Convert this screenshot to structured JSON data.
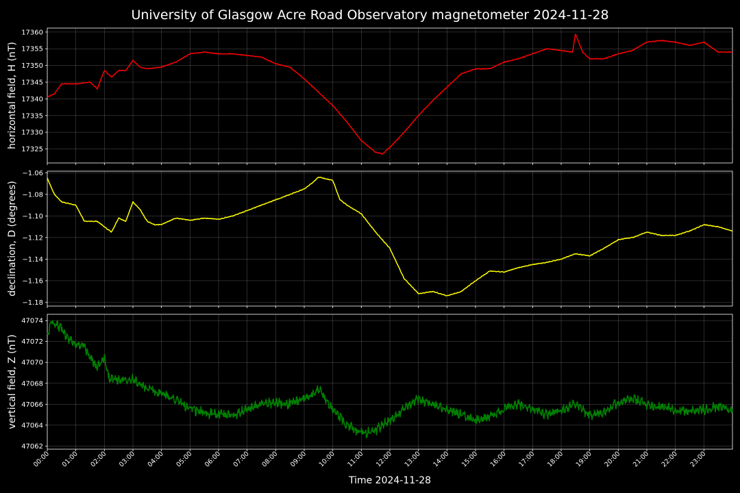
{
  "figure": {
    "title": "University of Glasgow Acre Road Observatory magnetometer 2024-11-28",
    "xlabel": "Time 2024-11-28"
  },
  "chart_data": [
    {
      "type": "line",
      "ylabel": "horizontal field, H (nT)",
      "color": "#ff0000",
      "xlim": [
        0,
        24
      ],
      "ylim": [
        17320.8,
        17361.2
      ],
      "yticks": [
        17325,
        17330,
        17335,
        17340,
        17345,
        17350,
        17355,
        17360
      ],
      "x_hours": [
        0,
        0.25,
        0.5,
        1,
        1.5,
        1.75,
        2,
        2.25,
        2.5,
        2.75,
        3,
        3.25,
        3.5,
        4,
        4.5,
        5,
        5.5,
        6,
        6.5,
        7,
        7.5,
        8,
        8.5,
        9,
        9.5,
        10,
        10.5,
        11,
        11.5,
        11.75,
        12,
        12.5,
        13,
        13.5,
        14,
        14.5,
        15,
        15.5,
        16,
        16.5,
        17,
        17.5,
        18,
        18.4,
        18.5,
        18.75,
        19,
        19.5,
        20,
        20.5,
        21,
        21.5,
        22,
        22.5,
        23,
        23.5,
        24
      ],
      "y_nT": [
        17340.5,
        17341.5,
        17344.5,
        17344.5,
        17345,
        17343,
        17348.5,
        17346.5,
        17348.5,
        17348.5,
        17351.5,
        17349.5,
        17349,
        17349.5,
        17351,
        17353.5,
        17354,
        17353.5,
        17353.5,
        17353,
        17352.5,
        17350.5,
        17349.5,
        17346,
        17342,
        17338,
        17333,
        17327.5,
        17324,
        17323.5,
        17325.5,
        17330,
        17335,
        17339.5,
        17343.5,
        17347.5,
        17349,
        17349,
        17351,
        17352,
        17353.5,
        17355,
        17354.5,
        17354,
        17359.5,
        17354,
        17352,
        17352,
        17353.5,
        17354.5,
        17357,
        17357.5,
        17357,
        17356,
        17357,
        17354,
        17354
      ]
    },
    {
      "type": "line",
      "ylabel": "declination, D (degrees)",
      "color": "#ffff00",
      "xlim": [
        0,
        24
      ],
      "ylim": [
        -1.1835,
        -1.0585
      ],
      "yticks": [
        -1.18,
        -1.16,
        -1.14,
        -1.12,
        -1.1,
        -1.08,
        -1.06
      ],
      "x_hours": [
        0,
        0.25,
        0.5,
        1,
        1.3,
        1.75,
        2.25,
        2.5,
        2.75,
        3,
        3.25,
        3.5,
        3.75,
        4,
        4.5,
        5,
        5.5,
        6,
        6.5,
        7,
        7.5,
        8,
        8.5,
        9,
        9.25,
        9.5,
        10,
        10.25,
        10.5,
        11,
        11.5,
        12,
        12.5,
        13,
        13.5,
        14,
        14.5,
        15,
        15.5,
        16,
        16.5,
        17,
        17.5,
        18,
        18.5,
        19,
        19.5,
        20,
        20.5,
        21,
        21.5,
        22,
        22.5,
        23,
        23.5,
        24
      ],
      "y_degrees": [
        -1.065,
        -1.08,
        -1.087,
        -1.09,
        -1.105,
        -1.105,
        -1.115,
        -1.102,
        -1.105,
        -1.087,
        -1.094,
        -1.105,
        -1.108,
        -1.108,
        -1.102,
        -1.104,
        -1.102,
        -1.103,
        -1.1,
        -1.095,
        -1.09,
        -1.085,
        -1.08,
        -1.075,
        -1.07,
        -1.064,
        -1.067,
        -1.085,
        -1.09,
        -1.098,
        -1.115,
        -1.13,
        -1.158,
        -1.172,
        -1.17,
        -1.174,
        -1.17,
        -1.16,
        -1.151,
        -1.152,
        -1.148,
        -1.145,
        -1.143,
        -1.14,
        -1.135,
        -1.137,
        -1.13,
        -1.122,
        -1.12,
        -1.115,
        -1.118,
        -1.118,
        -1.114,
        -1.108,
        -1.11,
        -1.114
      ]
    },
    {
      "type": "line",
      "ylabel": "vertical field, Z (nT)",
      "color": "#008000",
      "xlim": [
        0,
        24
      ],
      "ylim": [
        47061.7,
        47074.6
      ],
      "yticks": [
        47062,
        47064,
        47066,
        47068,
        47070,
        47072,
        47074
      ],
      "x_hours": [
        0,
        0.15,
        0.5,
        0.75,
        1,
        1.3,
        1.5,
        1.75,
        2,
        2.15,
        2.5,
        3,
        3.25,
        3.5,
        4,
        4.5,
        5,
        5.5,
        6,
        6.5,
        7,
        7.5,
        8,
        8.5,
        9,
        9.5,
        10,
        10.5,
        11,
        11.5,
        12,
        12.5,
        13,
        13.5,
        14,
        14.5,
        15,
        15.5,
        16,
        16.5,
        17,
        17.5,
        18,
        18.5,
        19,
        19.5,
        20,
        20.5,
        21,
        21.5,
        22,
        22.5,
        23,
        23.5,
        24
      ],
      "y_nT": [
        47072.5,
        47074,
        47073.2,
        47072.2,
        47071.8,
        47071.5,
        47070.5,
        47069.5,
        47070.5,
        47068.5,
        47068.3,
        47068.5,
        47067.8,
        47067.5,
        47067,
        47066.5,
        47065.5,
        47065.2,
        47065,
        47065,
        47065.5,
        47066,
        47066.2,
        47066,
        47066.5,
        47067.5,
        47065.5,
        47064,
        47063.2,
        47063.5,
        47064.5,
        47065.5,
        47066.5,
        47066,
        47065.5,
        47065,
        47064.5,
        47064.8,
        47065.5,
        47066,
        47065.5,
        47065,
        47065.5,
        47066,
        47065,
        47065.3,
        47066.2,
        47066.5,
        47066,
        47065.7,
        47065.5,
        47065.3,
        47065.5,
        47065.8,
        47065.5
      ],
      "noise_amplitude_nT": 0.7
    }
  ],
  "xticks": [
    "00:00",
    "01:00",
    "02:00",
    "03:00",
    "04:00",
    "05:00",
    "06:00",
    "07:00",
    "08:00",
    "09:00",
    "10:00",
    "11:00",
    "12:00",
    "13:00",
    "14:00",
    "15:00",
    "16:00",
    "17:00",
    "18:00",
    "19:00",
    "20:00",
    "21:00",
    "22:00",
    "23:00"
  ]
}
